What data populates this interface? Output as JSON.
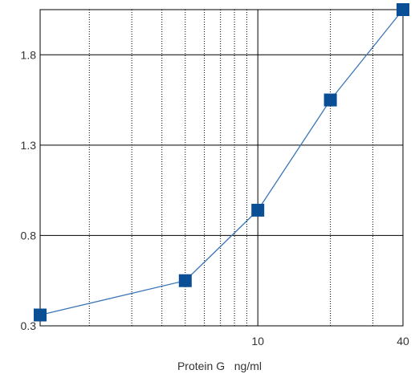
{
  "chart_data": {
    "type": "line",
    "title": "",
    "xlabel": "Protein G   ng/ml",
    "ylabel": "",
    "x_scale": "log",
    "xlim": [
      1.25,
      40
    ],
    "ylim": [
      0.3,
      2.05
    ],
    "y_ticks": [
      "0.3",
      "0.8",
      "1.3",
      "1.8"
    ],
    "x_tick_labels": [
      {
        "value": 10,
        "label": "10"
      },
      {
        "value": 40,
        "label": "40"
      }
    ],
    "series": [
      {
        "x": [
          1.25,
          5,
          10,
          20,
          40
        ],
        "y": [
          0.36,
          0.55,
          0.94,
          1.55,
          2.05
        ]
      }
    ],
    "grid": true,
    "colors": {
      "series": "#0a4f96",
      "line": "#3b75b8",
      "grid_major": "#000000",
      "grid_minor": "#000000"
    }
  }
}
